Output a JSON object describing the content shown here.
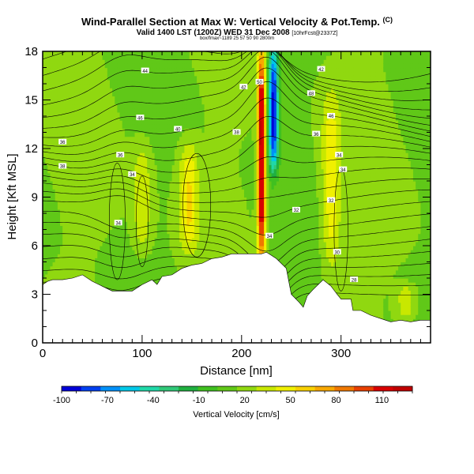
{
  "header": {
    "title": "Wind-Parallel Section at Max W: Vertical Velocity & Pot.Temp.",
    "title_mark": "(C)",
    "subtitle": "Valid 1400 LST (1200Z) WED 31 Dec 2008",
    "subtitle_extra": "[10hrFcst@2337Z]",
    "note": "box/fmax~1189 25 57 50 90 2800m"
  },
  "chart_data": {
    "type": "heatmap",
    "title": "Wind-Parallel Section at Max W: Vertical Velocity & Pot.Temp.",
    "xlabel": "Distance [nm]",
    "ylabel": "Height [Kft MSL]",
    "xlim": [
      0,
      390
    ],
    "ylim": [
      0,
      18
    ],
    "xticks": [
      0,
      100,
      200,
      300
    ],
    "yticks": [
      0,
      3,
      6,
      9,
      12,
      15,
      18
    ],
    "colorbar": {
      "title": "Vertical Velocity [cm/s]",
      "tick_values": [
        -100,
        -70,
        -40,
        -10,
        20,
        50,
        80,
        110
      ],
      "colors": [
        "#0000d8",
        "#0040f0",
        "#0090f8",
        "#00c8e8",
        "#20d8a8",
        "#30c878",
        "#20b040",
        "#40c020",
        "#60c818",
        "#90d810",
        "#c8e800",
        "#f0f000",
        "#f8d000",
        "#f8a800",
        "#f07800",
        "#e84000",
        "#d80000",
        "#c00000"
      ],
      "range": [
        -110,
        130
      ]
    },
    "terrain": [
      [
        0,
        3.6
      ],
      [
        5,
        3.8
      ],
      [
        10,
        3.9
      ],
      [
        20,
        3.9
      ],
      [
        30,
        4.0
      ],
      [
        40,
        4.2
      ],
      [
        50,
        3.8
      ],
      [
        60,
        3.5
      ],
      [
        70,
        3.2
      ],
      [
        90,
        3.2
      ],
      [
        100,
        3.6
      ],
      [
        110,
        3.9
      ],
      [
        115,
        3.6
      ],
      [
        120,
        4.1
      ],
      [
        130,
        4.2
      ],
      [
        140,
        4.6
      ],
      [
        150,
        4.8
      ],
      [
        160,
        4.9
      ],
      [
        170,
        5.2
      ],
      [
        180,
        5.3
      ],
      [
        190,
        5.5
      ],
      [
        210,
        5.5
      ],
      [
        220,
        5.5
      ],
      [
        225,
        5.6
      ],
      [
        230,
        5.4
      ],
      [
        235,
        5.2
      ],
      [
        245,
        4.6
      ],
      [
        250,
        3.0
      ],
      [
        258,
        2.5
      ],
      [
        262,
        2.2
      ],
      [
        266,
        2.9
      ],
      [
        272,
        3.3
      ],
      [
        282,
        3.9
      ],
      [
        290,
        3.5
      ],
      [
        296,
        3.0
      ],
      [
        300,
        2.7
      ],
      [
        310,
        2.7
      ],
      [
        312,
        2.0
      ],
      [
        320,
        2.0
      ],
      [
        330,
        1.7
      ],
      [
        340,
        1.5
      ],
      [
        350,
        1.3
      ],
      [
        360,
        1.4
      ],
      [
        370,
        1.3
      ],
      [
        380,
        1.4
      ],
      [
        390,
        1.4
      ]
    ],
    "w_features": [
      {
        "kind": "updraft",
        "x": 220,
        "w_max": 130,
        "height_range": [
          5.5,
          17.5
        ]
      },
      {
        "kind": "downdraft",
        "x": 232,
        "w_min": -100,
        "height_range": [
          11,
          18
        ]
      },
      {
        "kind": "updraft",
        "x": 147,
        "w_max": 50,
        "height_range": [
          6,
          12
        ]
      },
      {
        "kind": "updraft",
        "x": 290,
        "w_max": 45,
        "height_range": [
          5,
          15
        ]
      },
      {
        "kind": "updraft",
        "x": 100,
        "w_max": 35,
        "height_range": [
          6,
          12
        ]
      },
      {
        "kind": "updraft",
        "x": 365,
        "w_max": 35,
        "height_range": [
          1.5,
          3.5
        ]
      }
    ],
    "contour_labels": [
      {
        "text": "44",
        "x": 103,
        "y": 16.8
      },
      {
        "text": "42",
        "x": 280,
        "y": 16.9
      },
      {
        "text": "50",
        "x": 218,
        "y": 16.1
      },
      {
        "text": "42",
        "x": 202,
        "y": 15.8
      },
      {
        "text": "48",
        "x": 270,
        "y": 15.4
      },
      {
        "text": "46",
        "x": 98,
        "y": 13.9
      },
      {
        "text": "46",
        "x": 290,
        "y": 14.0
      },
      {
        "text": "40",
        "x": 136,
        "y": 13.2
      },
      {
        "text": "38",
        "x": 195,
        "y": 13.0
      },
      {
        "text": "36",
        "x": 20,
        "y": 12.4
      },
      {
        "text": "36",
        "x": 275,
        "y": 12.9
      },
      {
        "text": "36",
        "x": 78,
        "y": 11.6
      },
      {
        "text": "34",
        "x": 298,
        "y": 11.6
      },
      {
        "text": "38",
        "x": 20,
        "y": 10.9
      },
      {
        "text": "34",
        "x": 90,
        "y": 10.4
      },
      {
        "text": "34",
        "x": 302,
        "y": 10.7
      },
      {
        "text": "32",
        "x": 255,
        "y": 8.2
      },
      {
        "text": "32",
        "x": 290,
        "y": 8.8
      },
      {
        "text": "34",
        "x": 76,
        "y": 7.4
      },
      {
        "text": "34",
        "x": 228,
        "y": 6.6
      },
      {
        "text": "30",
        "x": 296,
        "y": 5.6
      },
      {
        "text": "28",
        "x": 313,
        "y": 3.9
      }
    ]
  }
}
